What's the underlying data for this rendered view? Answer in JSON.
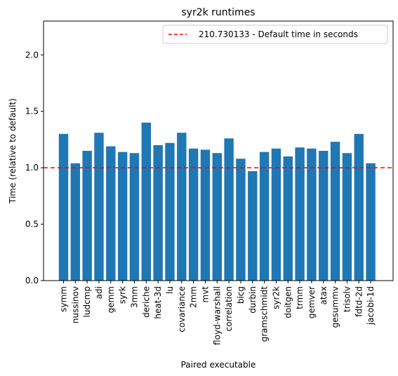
{
  "chart_data": {
    "type": "bar",
    "title": "syr2k runtimes",
    "xlabel": "Paired executable",
    "ylabel": "Time (relative to default)",
    "ylim": [
      0,
      2.3
    ],
    "yticks": [
      "0.0",
      "0.5",
      "1.0",
      "1.5",
      "2.0"
    ],
    "ytick_values": [
      0.0,
      0.5,
      1.0,
      1.5,
      2.0
    ],
    "grid": false,
    "legend_position": "top-right",
    "reference_line": {
      "value": 1.0,
      "label": "210.730133 - Default time in seconds",
      "style": "dashed",
      "color": "#ff0000"
    },
    "bar_color": "#1f77b4",
    "categories": [
      "symm",
      "nussinov",
      "ludcmp",
      "adi",
      "gemm",
      "syrk",
      "3mm",
      "deriche",
      "heat-3d",
      "lu",
      "covariance",
      "2mm",
      "mvt",
      "floyd-warshall",
      "correlation",
      "bicg",
      "durbin",
      "gramschmidt",
      "syr2k",
      "doitgen",
      "trmm",
      "gemver",
      "atax",
      "gesummv",
      "trisolv",
      "fdtd-2d",
      "jacobi-1d"
    ],
    "values": [
      1.3,
      1.04,
      1.15,
      1.31,
      1.19,
      1.14,
      1.13,
      1.4,
      1.2,
      1.22,
      1.31,
      1.17,
      1.16,
      1.13,
      1.26,
      1.08,
      0.97,
      1.14,
      1.17,
      1.1,
      1.18,
      1.17,
      1.15,
      1.23,
      1.13,
      1.3,
      1.04
    ]
  }
}
